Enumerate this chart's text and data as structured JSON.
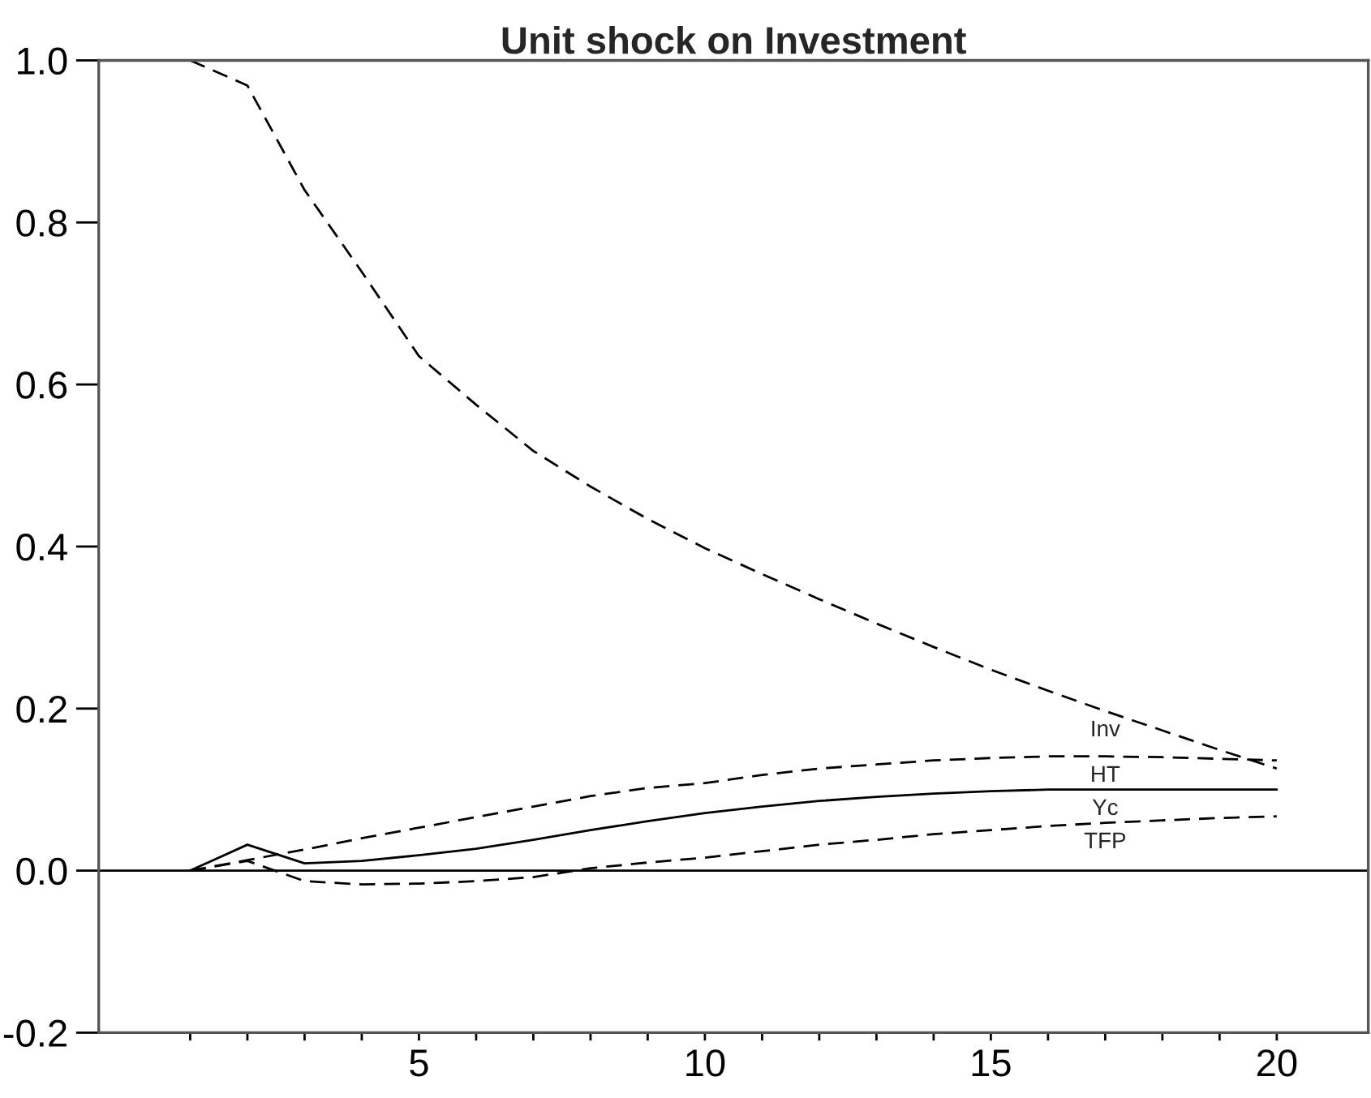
{
  "chart_data": {
    "type": "line",
    "title": "Unit shock on Investment",
    "x": [
      1,
      2,
      3,
      4,
      5,
      6,
      7,
      8,
      9,
      10,
      11,
      12,
      13,
      14,
      15,
      16,
      17,
      18,
      19,
      20
    ],
    "series": [
      {
        "name": "Inv",
        "color": "#000000",
        "line_style": "dashed",
        "values": [
          1.0,
          0.969,
          0.84,
          0.739,
          0.635,
          0.575,
          0.518,
          0.474,
          0.434,
          0.398,
          0.366,
          0.335,
          0.305,
          0.276,
          0.248,
          0.222,
          0.197,
          0.173,
          0.149,
          0.126
        ]
      },
      {
        "name": "HT",
        "color": "#000000",
        "line_style": "dashed",
        "values": [
          0,
          0.013,
          0.026,
          0.04,
          0.053,
          0.066,
          0.079,
          0.092,
          0.102,
          0.108,
          0.118,
          0.126,
          0.131,
          0.136,
          0.139,
          0.141,
          0.141,
          0.14,
          0.138,
          0.136
        ]
      },
      {
        "name": "Yc",
        "color": "#000000",
        "line_style": "solid",
        "values": [
          0,
          0.032,
          0.009,
          0.012,
          0.019,
          0.027,
          0.038,
          0.05,
          0.061,
          0.071,
          0.079,
          0.086,
          0.091,
          0.095,
          0.098,
          0.1,
          0.1,
          0.1,
          0.1,
          0.1
        ]
      },
      {
        "name": "TFP",
        "color": "#000000",
        "line_style": "dashed",
        "values": [
          0,
          0.012,
          -0.013,
          -0.017,
          -0.016,
          -0.013,
          -0.008,
          0.003,
          0.01,
          0.016,
          0.024,
          0.032,
          0.038,
          0.045,
          0.05,
          0.055,
          0.059,
          0.062,
          0.065,
          0.067
        ]
      }
    ],
    "ref_lines": [
      {
        "axis": "y",
        "value": 0,
        "color": "#000000"
      }
    ],
    "xlim": [
      -0.6,
      21.6
    ],
    "xticks": [
      {
        "value": 1,
        "label": null
      },
      {
        "value": 2,
        "label": null
      },
      {
        "value": 3,
        "label": null
      },
      {
        "value": 4,
        "label": null
      },
      5,
      {
        "value": 6,
        "label": null
      },
      {
        "value": 7,
        "label": null
      },
      {
        "value": 8,
        "label": null
      },
      {
        "value": 9,
        "label": null
      },
      10,
      {
        "value": 11,
        "label": null
      },
      {
        "value": 12,
        "label": null
      },
      {
        "value": 13,
        "label": null
      },
      {
        "value": 14,
        "label": null
      },
      15,
      {
        "value": 16,
        "label": null
      },
      {
        "value": 17,
        "label": null
      },
      {
        "value": 18,
        "label": null
      },
      {
        "value": 19,
        "label": null
      },
      20
    ],
    "ylim": [
      -0.2,
      1.0
    ],
    "yticks": [
      -0.2,
      {
        "value": 0,
        "label": "0.0"
      },
      0.2,
      0.4,
      0.6,
      0.8,
      {
        "value": 1,
        "label": "1.0"
      }
    ],
    "grid": false,
    "legend": false
  }
}
